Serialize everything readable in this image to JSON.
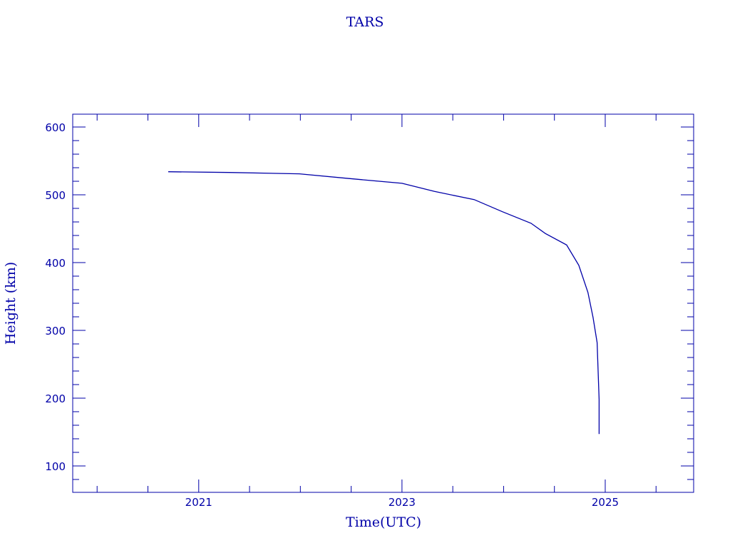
{
  "chart_data": {
    "type": "line",
    "title": "TARS",
    "xlabel": "Time(UTC)",
    "ylabel": "Height (km)",
    "xlim": [
      2019.76,
      2025.87
    ],
    "ylim": [
      61,
      619
    ],
    "x_ticks": [
      2021,
      2023,
      2025
    ],
    "x_tick_labels": [
      "2021",
      "2023",
      "2025"
    ],
    "y_ticks": [
      100,
      200,
      300,
      400,
      500,
      600
    ],
    "y_tick_labels": [
      "100",
      "200",
      "300",
      "400",
      "500",
      "600"
    ],
    "grid": false,
    "color": "#0000a8",
    "series": [
      {
        "x": [
          2020.7,
          2021.3,
          2021.99,
          2022.48,
          2023.0,
          2023.32,
          2023.71,
          2023.99,
          2024.27,
          2024.41,
          2024.62,
          2024.74,
          2024.83,
          2024.88,
          2024.92,
          2024.93,
          2024.94,
          2024.94
        ],
        "y": [
          534,
          533,
          531,
          524,
          517,
          505,
          493,
          475,
          458,
          443,
          426,
          396,
          356,
          319,
          282,
          240,
          198,
          147
        ]
      }
    ]
  }
}
